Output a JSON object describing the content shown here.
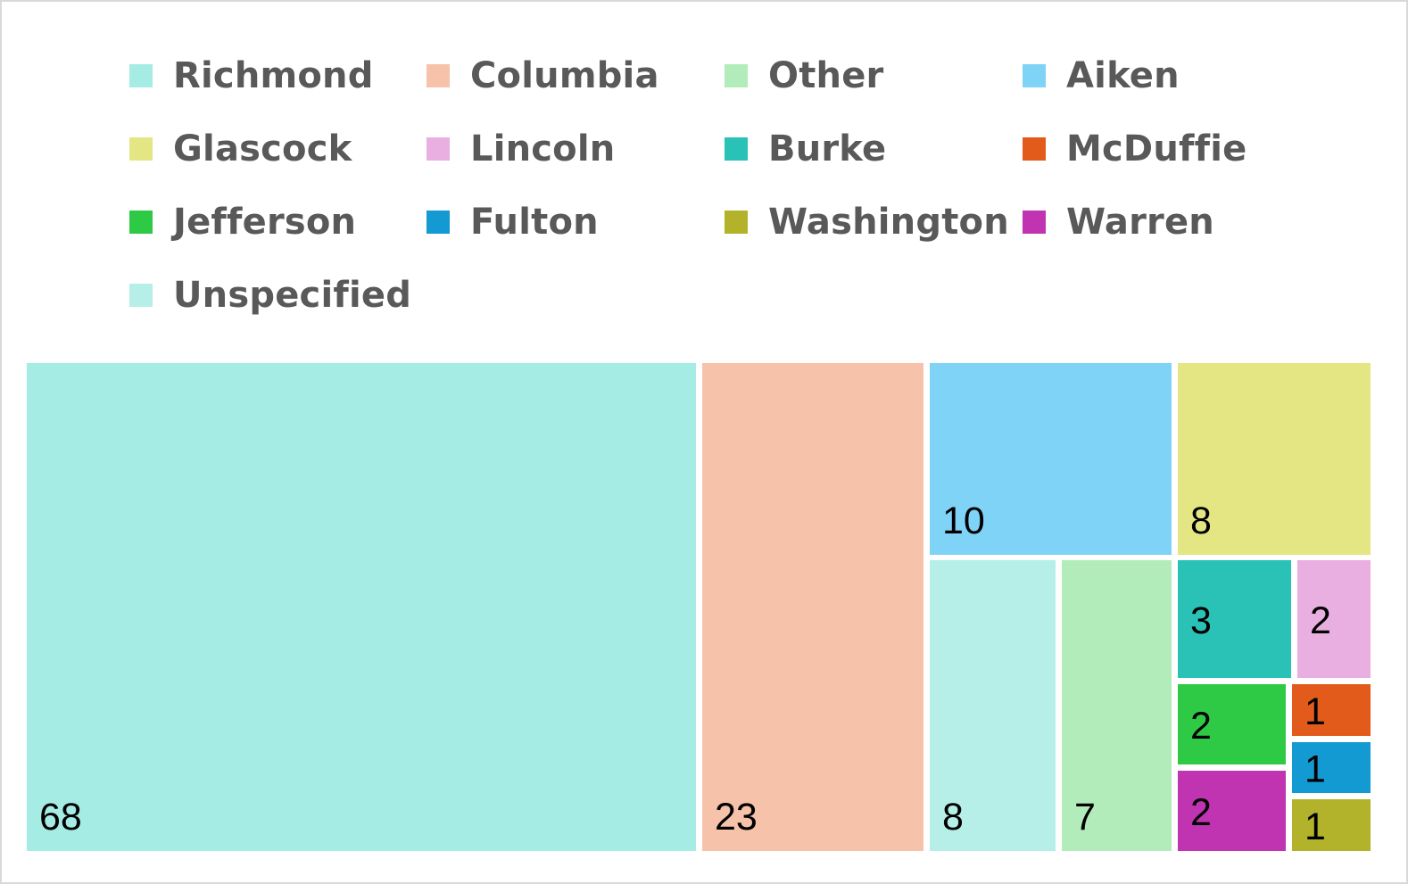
{
  "chart_data": {
    "type": "treemap",
    "title": "",
    "legend": {
      "placement": "top",
      "entries": [
        {
          "name": "Richmond",
          "color": "#a5ece5"
        },
        {
          "name": "Columbia",
          "color": "#f6c3aa"
        },
        {
          "name": "Other",
          "color": "#b2ecba"
        },
        {
          "name": "Aiken",
          "color": "#7fd3f6"
        },
        {
          "name": "Glascock",
          "color": "#e4e684"
        },
        {
          "name": "Lincoln",
          "color": "#eaafe1"
        },
        {
          "name": "Burke",
          "color": "#2ac2b6"
        },
        {
          "name": "McDuffie",
          "color": "#e35b1b"
        },
        {
          "name": "Jefferson",
          "color": "#2fca45"
        },
        {
          "name": "Fulton",
          "color": "#139ad3"
        },
        {
          "name": "Washington",
          "color": "#b2b32b"
        },
        {
          "name": "Warren",
          "color": "#c033b1"
        },
        {
          "name": "Unspecified",
          "color": "#b5efe8"
        }
      ]
    },
    "series": [
      {
        "name": "Richmond",
        "value": 68,
        "color": "#a5ece5"
      },
      {
        "name": "Columbia",
        "value": 23,
        "color": "#f6c3aa"
      },
      {
        "name": "Aiken",
        "value": 10,
        "color": "#7fd3f6"
      },
      {
        "name": "Glascock",
        "value": 8,
        "color": "#e4e684"
      },
      {
        "name": "Unspecified",
        "value": 8,
        "color": "#b5efe8"
      },
      {
        "name": "Other",
        "value": 7,
        "color": "#b2ecba"
      },
      {
        "name": "Burke",
        "value": 3,
        "color": "#2ac2b6"
      },
      {
        "name": "Lincoln",
        "value": 2,
        "color": "#eaafe1"
      },
      {
        "name": "Jefferson",
        "value": 2,
        "color": "#2fca45"
      },
      {
        "name": "Warren",
        "value": 2,
        "color": "#c033b1"
      },
      {
        "name": "McDuffie",
        "value": 1,
        "color": "#e35b1b"
      },
      {
        "name": "Fulton",
        "value": 1,
        "color": "#139ad3"
      },
      {
        "name": "Washington",
        "value": 1,
        "color": "#b2b32b"
      }
    ]
  }
}
